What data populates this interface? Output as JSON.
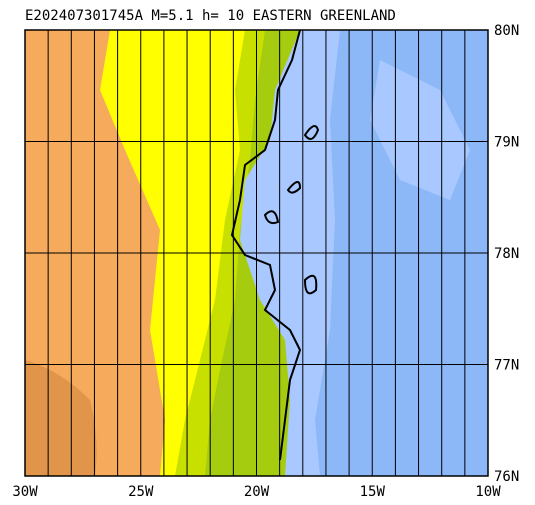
{
  "map": {
    "title": "E202407301745A M=5.1 h= 10 EASTERN GREENLAND",
    "lon_range": [
      -30,
      -10
    ],
    "lat_range": [
      76,
      80
    ],
    "grid_step": 1,
    "lon_ticks": [
      {
        "value": -30,
        "label": "30W"
      },
      {
        "value": -25,
        "label": "25W"
      },
      {
        "value": -20,
        "label": "20W"
      },
      {
        "value": -15,
        "label": "15W"
      },
      {
        "value": -10,
        "label": "10W"
      }
    ],
    "lat_ticks": [
      {
        "value": 76,
        "label": "76N"
      },
      {
        "value": 77,
        "label": "77N"
      },
      {
        "value": 78,
        "label": "78N"
      },
      {
        "value": 79,
        "label": "79N"
      },
      {
        "value": 80,
        "label": "80N"
      }
    ]
  }
}
